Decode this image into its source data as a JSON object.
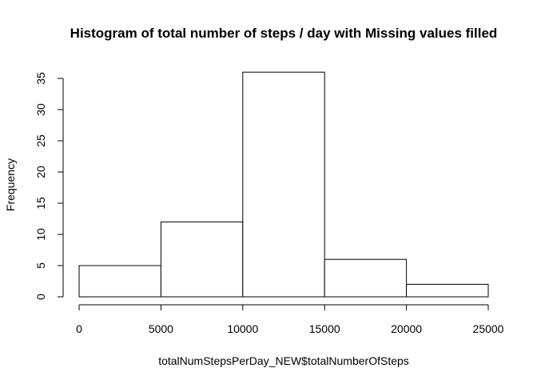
{
  "chart_data": {
    "type": "bar",
    "title": "Histogram of total number of steps / day with Missing values filled",
    "xlabel": "totalNumStepsPerDay_NEW$totalNumberOfSteps",
    "ylabel": "Frequency",
    "bins": [
      {
        "from": 0,
        "to": 5000,
        "count": 5
      },
      {
        "from": 5000,
        "to": 10000,
        "count": 12
      },
      {
        "from": 10000,
        "to": 15000,
        "count": 36
      },
      {
        "from": 15000,
        "to": 20000,
        "count": 6
      },
      {
        "from": 20000,
        "to": 25000,
        "count": 2
      }
    ],
    "xlim": [
      0,
      25000
    ],
    "ylim": [
      0,
      35
    ],
    "x_ticks": [
      0,
      5000,
      10000,
      15000,
      20000,
      25000
    ],
    "y_ticks": [
      0,
      5,
      10,
      15,
      20,
      25,
      30,
      35
    ],
    "grid": false,
    "bar_fill": "#ffffff",
    "bar_stroke": "#000000"
  }
}
